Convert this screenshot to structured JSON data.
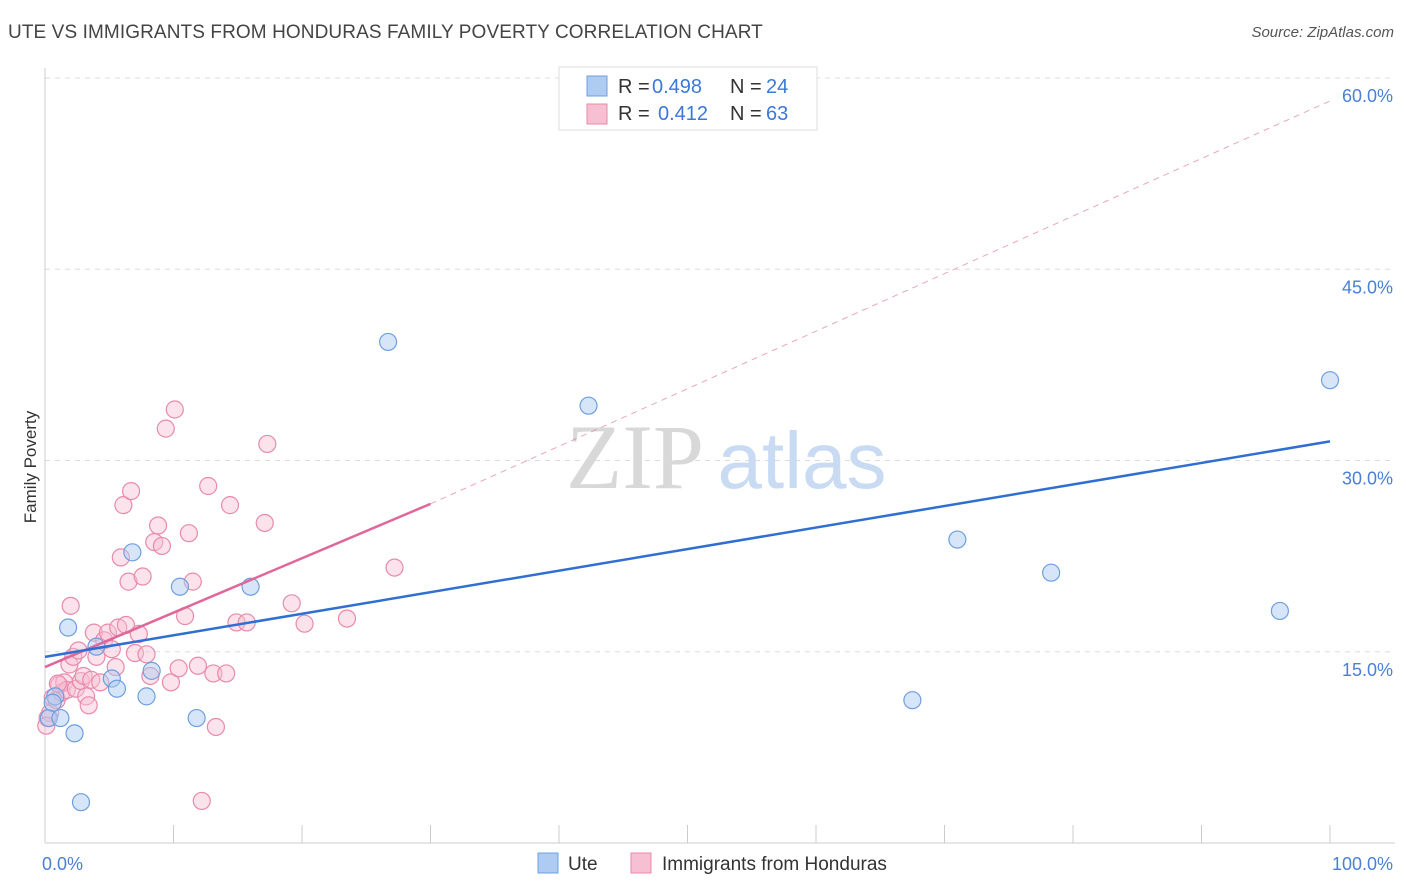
{
  "header": {
    "title": "UTE VS IMMIGRANTS FROM HONDURAS FAMILY POVERTY CORRELATION CHART",
    "source": "Source: ZipAtlas.com"
  },
  "watermark": {
    "zip": "ZIP",
    "atlas": "atlas"
  },
  "legend_top": {
    "rows": [
      {
        "r_label": "R =",
        "r_value": "0.498",
        "n_label": "N =",
        "n_value": "24"
      },
      {
        "r_label": "R =",
        "r_value": "0.412",
        "n_label": "N =",
        "n_value": "63"
      }
    ]
  },
  "colors": {
    "ute_fill": "#aecbf2",
    "ute_stroke": "#6f9fe0",
    "ute_line": "#2f6fd1",
    "hon_fill": "#f7bfd2",
    "hon_stroke": "#e98aab",
    "hon_line": "#e0679a",
    "grid": "#dddddd",
    "axis_label": "#4a7fd6"
  },
  "chart_data": {
    "type": "scatter",
    "title": "UTE VS IMMIGRANTS FROM HONDURAS FAMILY POVERTY CORRELATION CHART",
    "xlabel": "",
    "ylabel": "Family Poverty",
    "xlim": [
      0,
      100
    ],
    "ylim": [
      0,
      60
    ],
    "x_tick_labels": [
      "0.0%",
      "100.0%"
    ],
    "y_ticks": [
      15,
      30,
      45,
      60
    ],
    "y_tick_labels": [
      "15.0%",
      "30.0%",
      "45.0%",
      "60.0%"
    ],
    "grid": true,
    "legend_position": "top-center",
    "series": [
      {
        "name": "Ute",
        "r": 0.498,
        "n": 24,
        "trend": {
          "x": [
            0,
            100
          ],
          "y": [
            14.6,
            31.5
          ]
        },
        "points": [
          [
            0.3,
            9.8
          ],
          [
            0.8,
            11.5
          ],
          [
            1.2,
            9.8
          ],
          [
            1.8,
            16.9
          ],
          [
            2.3,
            8.6
          ],
          [
            2.8,
            3.2
          ],
          [
            4.0,
            15.4
          ],
          [
            5.2,
            12.9
          ],
          [
            5.6,
            12.1
          ],
          [
            6.8,
            22.8
          ],
          [
            7.9,
            11.5
          ],
          [
            8.3,
            13.5
          ],
          [
            10.5,
            20.1
          ],
          [
            11.8,
            9.8
          ],
          [
            16.0,
            20.1
          ],
          [
            26.7,
            39.3
          ],
          [
            42.3,
            34.3
          ],
          [
            52.4,
            56.7
          ],
          [
            67.5,
            11.2
          ],
          [
            71.0,
            23.8
          ],
          [
            78.3,
            21.2
          ],
          [
            96.1,
            18.2
          ],
          [
            100.0,
            36.3
          ],
          [
            0.6,
            11.0
          ]
        ]
      },
      {
        "name": "Immigrants from Honduras",
        "r": 0.412,
        "n": 63,
        "trend": {
          "x": [
            0,
            30
          ],
          "y": [
            13.8,
            26.6
          ]
        },
        "trend_extension": {
          "x": [
            30,
            100
          ],
          "y": [
            26.6,
            58.2
          ]
        },
        "points": [
          [
            0.2,
            9.8
          ],
          [
            0.4,
            10.2
          ],
          [
            0.6,
            11.4
          ],
          [
            0.9,
            11.2
          ],
          [
            1.1,
            12.4
          ],
          [
            1.3,
            11.8
          ],
          [
            1.5,
            12.6
          ],
          [
            1.7,
            12.0
          ],
          [
            1.9,
            14.0
          ],
          [
            2.0,
            18.6
          ],
          [
            2.2,
            14.6
          ],
          [
            2.4,
            12.1
          ],
          [
            2.6,
            15.1
          ],
          [
            2.8,
            12.7
          ],
          [
            3.0,
            13.1
          ],
          [
            3.2,
            11.5
          ],
          [
            3.4,
            10.8
          ],
          [
            3.6,
            12.8
          ],
          [
            3.8,
            16.5
          ],
          [
            4.0,
            14.6
          ],
          [
            4.3,
            12.6
          ],
          [
            4.6,
            15.9
          ],
          [
            4.9,
            16.5
          ],
          [
            5.2,
            15.2
          ],
          [
            5.5,
            13.8
          ],
          [
            5.7,
            16.9
          ],
          [
            5.9,
            22.4
          ],
          [
            6.1,
            26.5
          ],
          [
            6.3,
            17.1
          ],
          [
            6.5,
            20.5
          ],
          [
            6.7,
            27.6
          ],
          [
            7.0,
            14.9
          ],
          [
            7.3,
            16.4
          ],
          [
            7.6,
            20.9
          ],
          [
            7.9,
            14.8
          ],
          [
            8.2,
            13.1
          ],
          [
            8.5,
            23.6
          ],
          [
            8.8,
            24.9
          ],
          [
            9.1,
            23.3
          ],
          [
            9.4,
            32.5
          ],
          [
            9.8,
            12.6
          ],
          [
            10.1,
            34.0
          ],
          [
            10.4,
            13.7
          ],
          [
            10.9,
            17.8
          ],
          [
            11.2,
            24.3
          ],
          [
            11.5,
            20.5
          ],
          [
            11.9,
            13.9
          ],
          [
            12.2,
            3.3
          ],
          [
            12.7,
            28.0
          ],
          [
            13.1,
            13.3
          ],
          [
            13.3,
            9.1
          ],
          [
            14.1,
            13.3
          ],
          [
            14.4,
            26.5
          ],
          [
            14.9,
            17.3
          ],
          [
            15.7,
            17.3
          ],
          [
            17.1,
            25.1
          ],
          [
            17.3,
            31.3
          ],
          [
            19.2,
            18.8
          ],
          [
            20.2,
            17.2
          ],
          [
            23.5,
            17.6
          ],
          [
            27.2,
            21.6
          ],
          [
            0.1,
            9.2
          ],
          [
            1.0,
            12.5
          ]
        ]
      }
    ]
  },
  "bottom_legend": {
    "items": [
      "Ute",
      "Immigrants from Honduras"
    ]
  }
}
